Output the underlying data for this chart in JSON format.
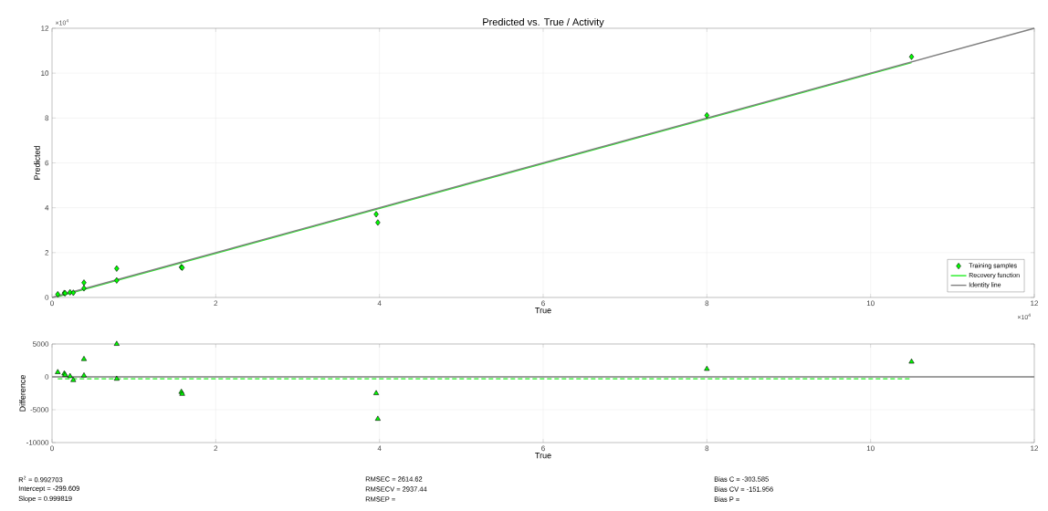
{
  "chart_data": [
    {
      "type": "scatter",
      "title": "Predicted vs. True / Activity",
      "xlabel": "True",
      "ylabel": "Predicted",
      "annotations": [
        "×10$^{4}$",
        "×10$^{4}$"
      ],
      "xlim": [
        0,
        12
      ],
      "xticks": [
        0,
        2,
        4,
        6,
        8,
        10,
        12
      ],
      "ylim": [
        0,
        12
      ],
      "yticks": [
        0,
        2,
        4,
        6,
        8,
        10,
        12
      ],
      "grid": true,
      "legend": "bottom right",
      "series": [
        {
          "name": "Training samples",
          "marker": "diamond",
          "color": "#00ff00",
          "x": [
            0.07,
            0.15,
            0.16,
            0.22,
            0.26,
            0.39,
            0.39,
            0.79,
            0.79,
            1.58,
            1.59,
            3.96,
            3.98,
            8.0,
            10.5
          ],
          "values": [
            0.14,
            0.2,
            0.19,
            0.23,
            0.21,
            0.66,
            0.41,
            1.29,
            0.76,
            1.35,
            1.33,
            3.71,
            3.34,
            8.12,
            10.73
          ]
        },
        {
          "name": "Recovery function",
          "type": "line",
          "line_style": "solid",
          "color": "#22ee22",
          "x": [
            0.07,
            10.5
          ],
          "values": [
            0.04,
            10.47
          ]
        },
        {
          "name": "Identity line",
          "type": "line",
          "line_style": "solid",
          "color": "#808080",
          "x": [
            0,
            12
          ],
          "values": [
            0,
            12
          ]
        }
      ]
    },
    {
      "type": "scatter",
      "xlabel": "True",
      "ylabel": "Difference",
      "annotations": [
        "R$^{2}$ = 0.992703",
        "Intercept = -299.609",
        "Slope = 0.999819",
        "RMSEC = 2614.62",
        "RMSECV = 2937.44",
        "RMSEP =",
        "Bias C = -303.585",
        "Bias CV = -151.956",
        "Bias P ="
      ],
      "xlim": [
        0,
        12
      ],
      "xticks": [
        0,
        2,
        4,
        6,
        8,
        10,
        12
      ],
      "ylim": [
        -10000,
        5000
      ],
      "yticks": [
        -10000,
        -5000,
        0,
        5000
      ],
      "grid": true,
      "series": [
        {
          "type": "line",
          "line_style": "solid",
          "color": "#808080",
          "x": [
            0,
            12
          ],
          "values": [
            0,
            0
          ]
        },
        {
          "type": "line",
          "line_style": "dashed",
          "color": "#22ee22",
          "x": [
            0.07,
            10.5
          ],
          "values": [
            -300,
            -300
          ]
        },
        {
          "marker": "triangle",
          "color": "#00ff00",
          "x": [
            0.07,
            0.15,
            0.16,
            0.22,
            0.26,
            0.39,
            0.39,
            0.79,
            0.79,
            1.58,
            1.59,
            3.96,
            3.98,
            8.0,
            10.5
          ],
          "values": [
            700,
            500,
            300,
            100,
            -500,
            2700,
            200,
            5000,
            -300,
            -2300,
            -2600,
            -2500,
            -6400,
            1200,
            2300
          ]
        }
      ]
    }
  ]
}
